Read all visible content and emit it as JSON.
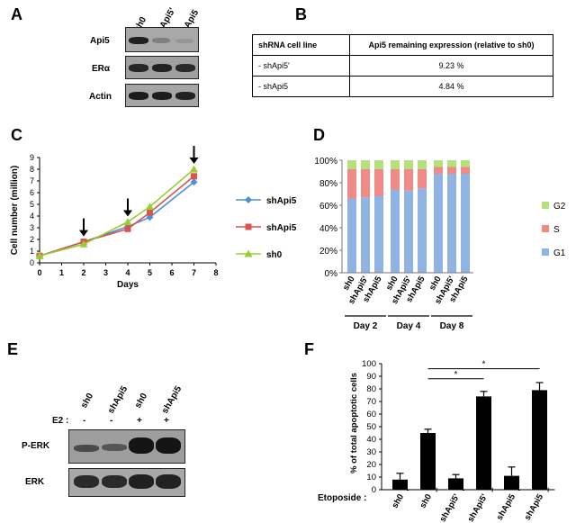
{
  "panels": {
    "A": "A",
    "B": "B",
    "C": "C",
    "D": "D",
    "E": "E",
    "F": "F"
  },
  "panelA": {
    "lanes": [
      "sh0",
      "shApi5'",
      "shApi5"
    ],
    "rows": [
      "Api5",
      "ERα",
      "Actin"
    ]
  },
  "panelB": {
    "headers": [
      "shRNA cell line",
      "Api5 remaining expression (relative to sh0)"
    ],
    "rows": [
      {
        "line": "- shApi5'",
        "value": "9.23 %"
      },
      {
        "line": "- shApi5",
        "value": "4.84 %"
      }
    ]
  },
  "panelE": {
    "lanes": [
      "sh0",
      "shApi5",
      "sh0",
      "shApi5"
    ],
    "e2_label": "E2 :",
    "e2_signs": [
      "-",
      "-",
      "+",
      "+"
    ],
    "rows": [
      "P-ERK",
      "ERK"
    ]
  },
  "chart_data": [
    {
      "id": "C",
      "type": "line",
      "xlabel": "Days",
      "ylabel": "Cell number (million)",
      "xlim": [
        0,
        8
      ],
      "ylim": [
        0,
        9
      ],
      "xticks": [
        "0",
        "1",
        "2",
        "3",
        "4",
        "5",
        "6",
        "7",
        "8"
      ],
      "yticks": [
        "0",
        "1",
        "2",
        "3",
        "4",
        "5",
        "6",
        "7",
        "8",
        "9"
      ],
      "x": [
        0,
        2,
        4,
        5,
        7
      ],
      "series": [
        {
          "name": "shApi5'",
          "color": "#4a90d9",
          "marker": "diamond",
          "values": [
            0.6,
            1.8,
            3.1,
            3.9,
            6.9
          ]
        },
        {
          "name": "shApi5",
          "color": "#d9534f",
          "marker": "square",
          "values": [
            0.6,
            1.8,
            2.9,
            4.3,
            7.4
          ]
        },
        {
          "name": "sh0",
          "color": "#9acd32",
          "marker": "triangle",
          "values": [
            0.6,
            1.6,
            3.5,
            4.8,
            8.0
          ]
        }
      ],
      "arrows_at_days": [
        2,
        4,
        7
      ]
    },
    {
      "id": "D",
      "type": "bar",
      "stacked": true,
      "yticks": [
        "0%",
        "20%",
        "40%",
        "60%",
        "80%",
        "100%"
      ],
      "ylim": [
        0,
        100
      ],
      "categories": [
        "sh0",
        "shApi5'",
        "shApi5",
        "sh0",
        "shApi5'",
        "shApi5",
        "sh0",
        "shApi5'",
        "shApi5"
      ],
      "groups": [
        "Day 2",
        "Day 4",
        "Day 8"
      ],
      "series": [
        {
          "name": "G1",
          "color": "#8fb4e3",
          "values": [
            66,
            67,
            68,
            74,
            73,
            75,
            88,
            88,
            88
          ]
        },
        {
          "name": "S",
          "color": "#f08a86",
          "values": [
            26,
            25,
            24,
            18,
            19,
            17,
            6,
            6,
            6
          ]
        },
        {
          "name": "G2",
          "color": "#b6e07a",
          "values": [
            8,
            8,
            8,
            8,
            8,
            8,
            6,
            6,
            6
          ]
        }
      ],
      "legend_order": [
        "G2",
        "S",
        "G1"
      ]
    },
    {
      "id": "F",
      "type": "bar",
      "ylabel": "% of total apoptotic cells",
      "ylim": [
        0,
        100
      ],
      "yticks": [
        "0",
        "10",
        "20",
        "30",
        "40",
        "50",
        "60",
        "70",
        "80",
        "90",
        "100"
      ],
      "categories": [
        "sh0",
        "sh0",
        "shApi5'",
        "shApi5'",
        "shApi5",
        "shApi5"
      ],
      "etoposide_label": "Etoposide :",
      "etoposide": [
        "-",
        "+",
        "-",
        "+",
        "-",
        "+"
      ],
      "values": [
        8,
        45,
        9,
        74,
        11,
        79
      ],
      "errors": [
        5,
        3,
        3,
        4,
        7,
        6
      ],
      "significance": [
        {
          "from": 1,
          "to": 3,
          "label": "*"
        },
        {
          "from": 1,
          "to": 5,
          "label": "*"
        }
      ]
    }
  ]
}
